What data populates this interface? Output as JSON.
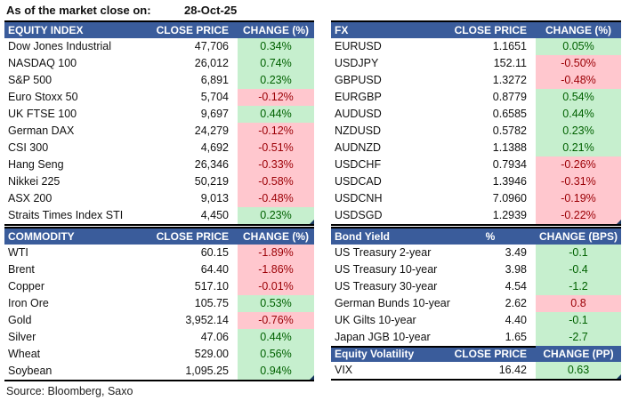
{
  "page": {
    "as_of_label": "As of the market close on:",
    "as_of_date": "28-Oct-25",
    "source": "Source: Bloomberg, Saxo"
  },
  "colors": {
    "header_bg": "#3A5C9B",
    "header_text": "#FFFFFF",
    "positive_bg": "#C6EFCE",
    "positive_text": "#006100",
    "negative_bg": "#FFC7CE",
    "negative_text": "#9C0006",
    "border": "#000000",
    "corner_marker": "#17375E"
  },
  "tables": {
    "equity": {
      "headers": [
        "EQUITY INDEX",
        "CLOSE PRICE",
        "CHANGE (%)"
      ],
      "rows": [
        {
          "label": "Dow Jones Industrial",
          "close": "47,706",
          "change": "0.34%",
          "tone": "good"
        },
        {
          "label": "NASDAQ 100",
          "close": "26,012",
          "change": "0.74%",
          "tone": "good"
        },
        {
          "label": "S&P 500",
          "close": "6,891",
          "change": "0.23%",
          "tone": "good"
        },
        {
          "label": "Euro Stoxx 50",
          "close": "5,704",
          "change": "-0.12%",
          "tone": "bad"
        },
        {
          "label": "UK FTSE 100",
          "close": "9,697",
          "change": "0.44%",
          "tone": "good"
        },
        {
          "label": "German DAX",
          "close": "24,279",
          "change": "-0.12%",
          "tone": "bad"
        },
        {
          "label": "CSI 300",
          "close": "4,692",
          "change": "-0.51%",
          "tone": "bad"
        },
        {
          "label": "Hang Seng",
          "close": "26,346",
          "change": "-0.33%",
          "tone": "bad"
        },
        {
          "label": "Nikkei 225",
          "close": "50,219",
          "change": "-0.58%",
          "tone": "bad"
        },
        {
          "label": "ASX 200",
          "close": "9,013",
          "change": "-0.48%",
          "tone": "bad"
        },
        {
          "label": "Straits Times Index STI",
          "close": "4,450",
          "change": "0.23%",
          "tone": "good"
        }
      ]
    },
    "fx": {
      "headers": [
        "FX",
        "CLOSE PRICE",
        "CHANGE (%)"
      ],
      "rows": [
        {
          "label": "EURUSD",
          "close": "1.1651",
          "change": "0.05%",
          "tone": "good"
        },
        {
          "label": "USDJPY",
          "close": "152.11",
          "change": "-0.50%",
          "tone": "bad"
        },
        {
          "label": "GBPUSD",
          "close": "1.3272",
          "change": "-0.48%",
          "tone": "bad"
        },
        {
          "label": "EURGBP",
          "close": "0.8779",
          "change": "0.54%",
          "tone": "good"
        },
        {
          "label": "AUDUSD",
          "close": "0.6585",
          "change": "0.44%",
          "tone": "good"
        },
        {
          "label": "NZDUSD",
          "close": "0.5782",
          "change": "0.23%",
          "tone": "good"
        },
        {
          "label": "AUDNZD",
          "close": "1.1388",
          "change": "0.21%",
          "tone": "good"
        },
        {
          "label": "USDCHF",
          "close": "0.7934",
          "change": "-0.26%",
          "tone": "bad"
        },
        {
          "label": "USDCAD",
          "close": "1.3946",
          "change": "-0.31%",
          "tone": "bad"
        },
        {
          "label": "USDCNH",
          "close": "7.0960",
          "change": "-0.19%",
          "tone": "bad"
        },
        {
          "label": "USDSGD",
          "close": "1.2939",
          "change": "-0.22%",
          "tone": "bad"
        }
      ]
    },
    "commodity": {
      "headers": [
        "COMMODITY",
        "CLOSE PRICE",
        "CHANGE (%)"
      ],
      "rows": [
        {
          "label": "WTI",
          "close": "60.15",
          "change": "-1.89%",
          "tone": "bad"
        },
        {
          "label": "Brent",
          "close": "64.40",
          "change": "-1.86%",
          "tone": "bad"
        },
        {
          "label": "Copper",
          "close": "517.10",
          "change": "-0.01%",
          "tone": "bad"
        },
        {
          "label": "Iron Ore",
          "close": "105.75",
          "change": "0.53%",
          "tone": "good"
        },
        {
          "label": "Gold",
          "close": "3,952.14",
          "change": "-0.76%",
          "tone": "bad"
        },
        {
          "label": "Silver",
          "close": "47.06",
          "change": "0.44%",
          "tone": "good"
        },
        {
          "label": "Wheat",
          "close": "529.00",
          "change": "0.56%",
          "tone": "good"
        },
        {
          "label": "Soybean",
          "close": "1,095.25",
          "change": "0.94%",
          "tone": "good"
        }
      ]
    },
    "bond": {
      "headers": [
        "Bond Yield",
        "%",
        "CHANGE (BPS)"
      ],
      "rows": [
        {
          "label": "US Treasury 2-year",
          "close": "3.49",
          "change": "-0.1",
          "tone": "good"
        },
        {
          "label": "US Treasury 10-year",
          "close": "3.98",
          "change": "-0.4",
          "tone": "good"
        },
        {
          "label": "US Treasury 30-year",
          "close": "4.54",
          "change": "-1.2",
          "tone": "good"
        },
        {
          "label": "German Bunds 10-year",
          "close": "2.62",
          "change": "0.8",
          "tone": "bad"
        },
        {
          "label": "UK Gilts 10-year",
          "close": "4.40",
          "change": "-0.1",
          "tone": "good"
        },
        {
          "label": "Japan JGB 10-year",
          "close": "1.65",
          "change": "-2.7",
          "tone": "good"
        }
      ]
    },
    "volatility": {
      "headers": [
        "Equity Volatility",
        "CLOSE PRICE",
        "CHANGE (PP)"
      ],
      "rows": [
        {
          "label": "VIX",
          "close": "16.42",
          "change": "0.63",
          "tone": "good"
        }
      ]
    }
  }
}
